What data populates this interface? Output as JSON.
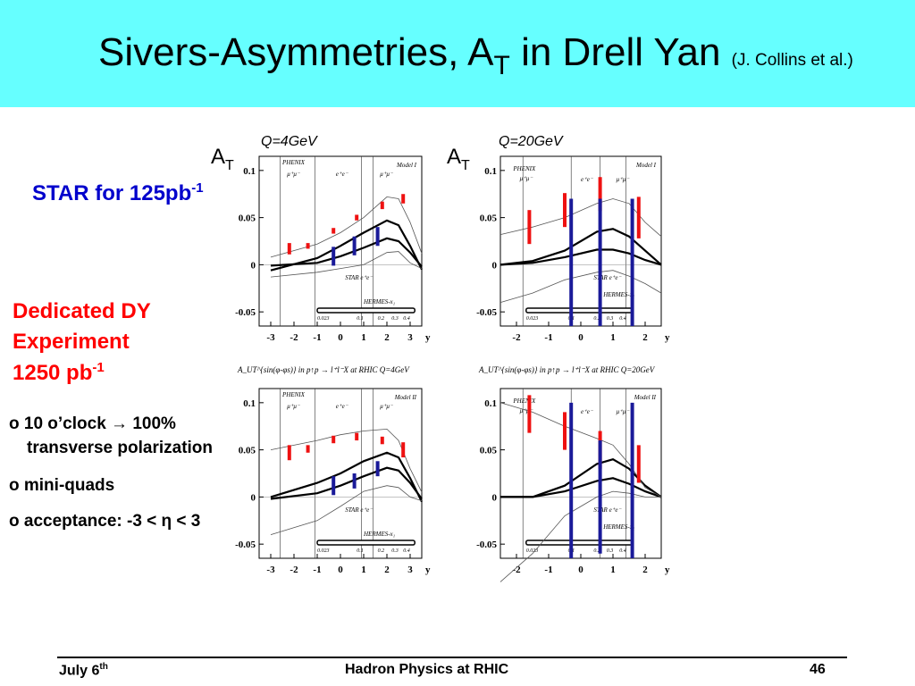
{
  "slide": {
    "title_main": "Sivers-Asymmetries, A",
    "title_sub": "T",
    "title_tail": " in Drell Yan ",
    "title_ref": "(J. Collins et al.)",
    "star_label": "STAR for 125pb",
    "star_sup": "-1",
    "dy_line1": "Dedicated DY",
    "dy_line2": "Experiment",
    "dy_lumi": "1250 pb",
    "dy_sup": "-1",
    "bullets": [
      "o 10 o’clock → 100%",
      "transverse polarization",
      "o mini-quads",
      "o acceptance: -3 < η < 3"
    ],
    "at_main": "A",
    "at_sub": "T",
    "q_left": "Q=4GeV",
    "q_right": "Q=20GeV",
    "footer_date": "July 6",
    "footer_date_sup": "th",
    "footer_center": "Hadron Physics at RHIC",
    "footer_page": "46"
  },
  "chart_data": [
    {
      "type": "line",
      "panel": "top-left",
      "model": "Model I",
      "yticks": [
        "0.1",
        "0.05",
        "0",
        "-0.05"
      ],
      "xticks": [
        "-3",
        "-2",
        "-1",
        "0",
        "1",
        "2",
        "3"
      ],
      "xlabel": "y",
      "xlim": [
        -3.5,
        3.5
      ],
      "ylim": [
        -0.065,
        0.115
      ],
      "regions": [
        "PHENIX",
        "μ⁺μ⁻",
        "e⁺e⁻",
        "μ⁺μ⁻",
        "STAR  e⁺e⁻",
        "HERMES-x₁"
      ],
      "xaxis_ticks": [
        "0.023",
        "0.1",
        "0.2",
        "0.3",
        "0.4"
      ],
      "series": [
        {
          "values": [
            [
              -3,
              -0.006
            ],
            [
              -1,
              0.007
            ],
            [
              0,
              0.02
            ],
            [
              1,
              0.034
            ],
            [
              2,
              0.047
            ],
            [
              2.5,
              0.042
            ],
            [
              3,
              0.02
            ],
            [
              3.5,
              -0.005
            ]
          ]
        },
        {
          "values": [
            [
              -3,
              -0.001
            ],
            [
              -1,
              0.002
            ],
            [
              0,
              0.009
            ],
            [
              1,
              0.018
            ],
            [
              2,
              0.028
            ],
            [
              2.5,
              0.025
            ],
            [
              3,
              0.013
            ],
            [
              3.5,
              -0.002
            ]
          ]
        },
        {
          "values": [
            [
              -3,
              0.008
            ],
            [
              -1,
              0.022
            ],
            [
              0,
              0.034
            ],
            [
              1,
              0.05
            ],
            [
              2,
              0.072
            ],
            [
              2.5,
              0.07
            ],
            [
              3,
              0.045
            ],
            [
              3.5,
              0.012
            ]
          ]
        },
        {
          "values": [
            [
              -3,
              -0.013
            ],
            [
              -1,
              -0.008
            ],
            [
              0,
              -0.004
            ],
            [
              1,
              0.0
            ],
            [
              2,
              0.013
            ],
            [
              2.5,
              0.014
            ],
            [
              3,
              0.002
            ],
            [
              3.5,
              -0.004
            ]
          ]
        }
      ],
      "red_bars": [
        [
          -2.2,
          0.017,
          0.006
        ],
        [
          -1.4,
          0.02,
          0.003
        ],
        [
          -0.3,
          0.036,
          0.003
        ],
        [
          0.7,
          0.05,
          0.003
        ],
        [
          1.8,
          0.063,
          0.004
        ],
        [
          2.7,
          0.07,
          0.005
        ]
      ],
      "blue_bars": [
        [
          -0.3,
          0.009,
          0.01
        ],
        [
          0.6,
          0.02,
          0.01
        ],
        [
          1.6,
          0.03,
          0.01
        ]
      ]
    },
    {
      "type": "line",
      "panel": "top-right",
      "model": "Model I",
      "yticks": [
        "0.1",
        "0.05",
        "0",
        "-0.05"
      ],
      "xticks": [
        "-2",
        "-1",
        "0",
        "1",
        "2"
      ],
      "xlabel": "y",
      "xlim": [
        -2.5,
        2.5
      ],
      "ylim": [
        -0.065,
        0.115
      ],
      "regions": [
        "PHENIX",
        "μ⁺μ⁻",
        "e⁺e⁻",
        "μ⁺μ⁻",
        "STAR  e⁺e⁻",
        "HERMES-x₁"
      ],
      "xaxis_ticks": [
        "0.023",
        "0.1",
        "0.2",
        "0.3",
        "0.4"
      ],
      "series": [
        {
          "values": [
            [
              -2.5,
              0.0
            ],
            [
              -1.5,
              0.004
            ],
            [
              -0.5,
              0.015
            ],
            [
              0.5,
              0.035
            ],
            [
              1,
              0.038
            ],
            [
              1.5,
              0.03
            ],
            [
              2,
              0.015
            ],
            [
              2.5,
              0.0
            ]
          ]
        },
        {
          "values": [
            [
              -2.5,
              0.0
            ],
            [
              -1.5,
              0.002
            ],
            [
              -0.5,
              0.008
            ],
            [
              0.5,
              0.016
            ],
            [
              1,
              0.016
            ],
            [
              1.5,
              0.012
            ],
            [
              2,
              0.005
            ],
            [
              2.5,
              0.0
            ]
          ]
        },
        {
          "values": [
            [
              -2.5,
              0.032
            ],
            [
              -1.5,
              0.04
            ],
            [
              -0.5,
              0.05
            ],
            [
              0.5,
              0.065
            ],
            [
              1,
              0.07
            ],
            [
              1.5,
              0.065
            ],
            [
              2,
              0.045
            ],
            [
              2.5,
              0.03
            ]
          ]
        },
        {
          "values": [
            [
              -2.5,
              -0.04
            ],
            [
              -1.5,
              -0.03
            ],
            [
              -0.5,
              -0.016
            ],
            [
              0.5,
              -0.008
            ],
            [
              1,
              -0.006
            ],
            [
              1.5,
              -0.012
            ],
            [
              2,
              -0.02
            ],
            [
              2.5,
              -0.03
            ]
          ]
        }
      ],
      "red_bars": [
        [
          -1.6,
          0.04,
          0.018
        ],
        [
          -0.5,
          0.058,
          0.018
        ],
        [
          0.6,
          0.075,
          0.018
        ],
        [
          1.8,
          0.05,
          0.022
        ]
      ],
      "blue_bars": [
        [
          -0.3,
          0.0,
          0.07
        ],
        [
          0.6,
          0.0,
          0.07
        ],
        [
          1.6,
          0.0,
          0.07
        ]
      ]
    },
    {
      "type": "line",
      "panel": "bottom-left",
      "model": "Model II",
      "heading": "A_UT^{sin(φ-φs)}  in p↑p → l⁺l⁻X  at RHIC Q=4GeV",
      "yticks": [
        "0.1",
        "0.05",
        "0",
        "-0.05"
      ],
      "xticks": [
        "-3",
        "-2",
        "-1",
        "0",
        "1",
        "2",
        "3"
      ],
      "xlabel": "y",
      "xlim": [
        -3.5,
        3.5
      ],
      "ylim": [
        -0.065,
        0.115
      ],
      "regions": [
        "PHENIX",
        "μ⁺μ⁻",
        "e⁺e⁻",
        "μ⁺μ⁻",
        "STAR  e⁺e⁻",
        "HERMES-x₁"
      ],
      "xaxis_ticks": [
        "0.023",
        "0.1",
        "0.2",
        "0.3",
        "0.4"
      ],
      "series": [
        {
          "values": [
            [
              -3,
              0.0
            ],
            [
              -1,
              0.015
            ],
            [
              0,
              0.025
            ],
            [
              1,
              0.038
            ],
            [
              2,
              0.047
            ],
            [
              2.5,
              0.042
            ],
            [
              3,
              0.02
            ],
            [
              3.5,
              -0.005
            ]
          ]
        },
        {
          "values": [
            [
              -3,
              -0.002
            ],
            [
              -1,
              0.004
            ],
            [
              0,
              0.012
            ],
            [
              1,
              0.022
            ],
            [
              2,
              0.031
            ],
            [
              2.5,
              0.028
            ],
            [
              3,
              0.015
            ],
            [
              3.5,
              -0.002
            ]
          ]
        },
        {
          "values": [
            [
              -3,
              0.05
            ],
            [
              -1,
              0.06
            ],
            [
              0,
              0.066
            ],
            [
              1,
              0.07
            ],
            [
              2,
              0.072
            ],
            [
              2.5,
              0.06
            ],
            [
              3,
              0.03
            ],
            [
              3.5,
              0.005
            ]
          ]
        },
        {
          "values": [
            [
              -3,
              -0.04
            ],
            [
              -1,
              -0.025
            ],
            [
              0,
              -0.01
            ],
            [
              1,
              0.006
            ],
            [
              2,
              0.012
            ],
            [
              2.5,
              0.01
            ],
            [
              3,
              0.0
            ],
            [
              3.5,
              -0.004
            ]
          ]
        }
      ],
      "red_bars": [
        [
          -2.2,
          0.047,
          0.008
        ],
        [
          -1.4,
          0.051,
          0.004
        ],
        [
          -0.3,
          0.061,
          0.004
        ],
        [
          0.7,
          0.064,
          0.004
        ],
        [
          1.8,
          0.06,
          0.004
        ],
        [
          2.7,
          0.05,
          0.008
        ]
      ],
      "blue_bars": [
        [
          -0.3,
          0.012,
          0.01
        ],
        [
          0.6,
          0.017,
          0.008
        ],
        [
          1.6,
          0.03,
          0.008
        ]
      ]
    },
    {
      "type": "line",
      "panel": "bottom-right",
      "model": "Model II",
      "heading": "A_UT^{sin(φ-φs)}  in p↑p → l⁺l⁻X  at RHIC Q=20GeV",
      "yticks": [
        "0.1",
        "0.05",
        "0",
        "-0.05"
      ],
      "xticks": [
        "-2",
        "-1",
        "0",
        "1",
        "2"
      ],
      "xlabel": "y",
      "xlim": [
        -2.5,
        2.5
      ],
      "ylim": [
        -0.065,
        0.115
      ],
      "regions": [
        "PHENIX",
        "μ⁺μ⁻",
        "e⁺e⁻",
        "μ⁺μ⁻",
        "STAR  e⁺e⁻",
        "HERMES-x₁"
      ],
      "xaxis_ticks": [
        "0.023",
        "0.1",
        "0.2",
        "0.3",
        "0.4"
      ],
      "series": [
        {
          "values": [
            [
              -2.5,
              0.0
            ],
            [
              -1.5,
              0.0
            ],
            [
              -0.5,
              0.012
            ],
            [
              0.5,
              0.035
            ],
            [
              1,
              0.04
            ],
            [
              1.5,
              0.03
            ],
            [
              2,
              0.012
            ],
            [
              2.5,
              0.0
            ]
          ]
        },
        {
          "values": [
            [
              -2.5,
              0.0
            ],
            [
              -1.5,
              0.0
            ],
            [
              -0.5,
              0.006
            ],
            [
              0.5,
              0.017
            ],
            [
              1,
              0.02
            ],
            [
              1.5,
              0.014
            ],
            [
              2,
              0.006
            ],
            [
              2.5,
              0.0
            ]
          ]
        },
        {
          "values": [
            [
              -2.5,
              0.1
            ],
            [
              -1.5,
              0.09
            ],
            [
              -0.5,
              0.075
            ],
            [
              0.5,
              0.062
            ],
            [
              1,
              0.055
            ],
            [
              1.5,
              0.035
            ],
            [
              2,
              0.01
            ],
            [
              2.5,
              0.0
            ]
          ]
        },
        {
          "values": [
            [
              -2.5,
              -0.09
            ],
            [
              -1.5,
              -0.06
            ],
            [
              -0.5,
              -0.02
            ],
            [
              0.5,
              0.0
            ],
            [
              1,
              0.006
            ],
            [
              1.5,
              0.004
            ],
            [
              2,
              0.0
            ],
            [
              2.5,
              0.0
            ]
          ]
        }
      ],
      "red_bars": [
        [
          -1.6,
          0.088,
          0.02
        ],
        [
          -0.5,
          0.07,
          0.02
        ],
        [
          0.6,
          0.05,
          0.02
        ],
        [
          1.8,
          0.035,
          0.02
        ]
      ],
      "blue_bars": [
        [
          -0.3,
          0.0,
          0.1
        ],
        [
          0.6,
          0.0,
          0.06
        ],
        [
          1.6,
          0.0,
          0.1
        ]
      ]
    }
  ]
}
